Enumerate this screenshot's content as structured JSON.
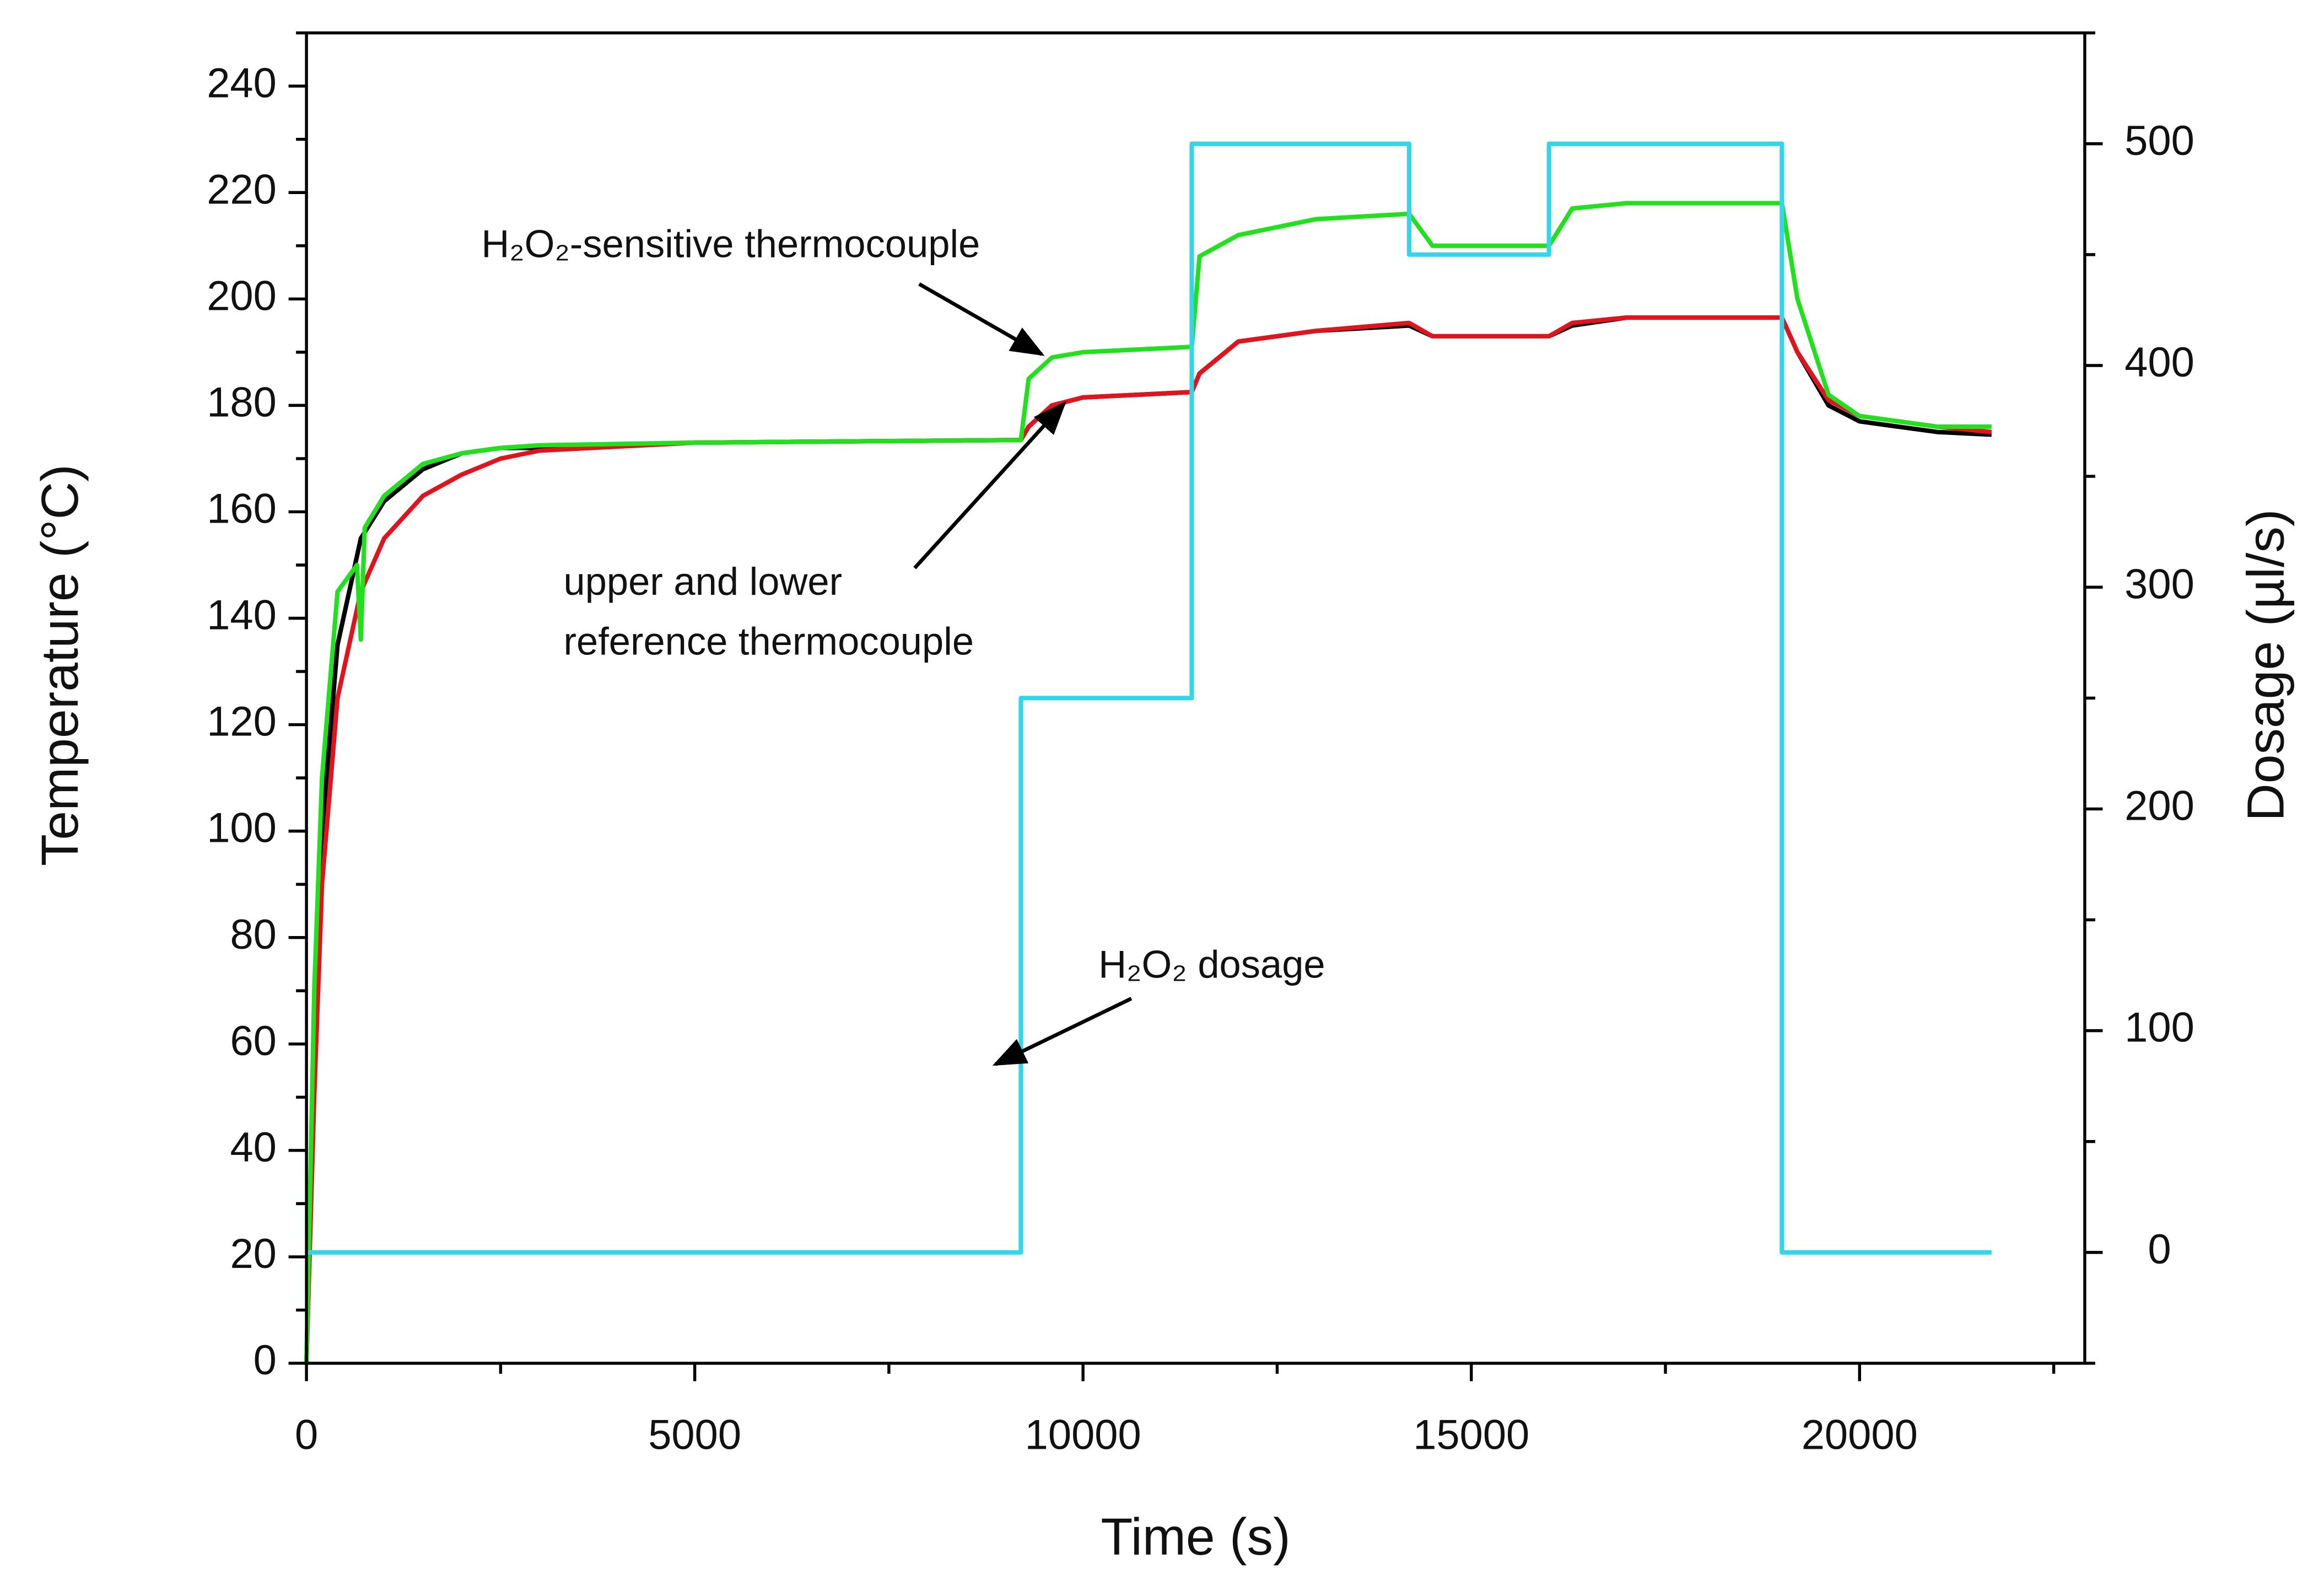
{
  "chart_data": {
    "type": "line",
    "xlabel": "Time (s)",
    "ylabel": "Temperature (°C)",
    "y2label": "Dosage (µl/s)",
    "xlim": [
      0,
      22900
    ],
    "ylim": [
      0,
      250
    ],
    "y2lim": [
      -50,
      550
    ],
    "xticks": [
      0,
      5000,
      10000,
      15000,
      20000
    ],
    "xticks_minor": [
      2500,
      7500,
      12500,
      17500,
      22500
    ],
    "yticks": [
      0,
      20,
      40,
      60,
      80,
      100,
      120,
      140,
      160,
      180,
      200,
      220,
      240
    ],
    "yticks_minor": [
      10,
      30,
      50,
      70,
      90,
      110,
      130,
      150,
      170,
      190,
      210,
      230,
      250
    ],
    "y2ticks": [
      0,
      100,
      200,
      300,
      400,
      500
    ],
    "y2ticks_minor": [
      -50,
      50,
      150,
      250,
      350,
      450,
      550
    ],
    "series": [
      {
        "color": "#000000",
        "x": [
          0,
          100,
          200,
          400,
          700,
          1000,
          1500,
          2000,
          2500,
          3000,
          5000,
          9200,
          9300,
          9600,
          10000,
          11400,
          11500,
          12000,
          13000,
          14200,
          14500,
          16000,
          16300,
          17000,
          19000,
          19200,
          19600,
          20000,
          21000,
          21700
        ],
        "values": [
          0,
          60,
          100,
          135,
          155,
          162,
          168,
          171,
          172,
          172,
          173,
          173.5,
          176,
          180,
          181.5,
          182.5,
          186,
          192,
          194,
          195,
          193,
          193,
          195,
          196.5,
          196.5,
          190,
          180,
          177,
          175,
          174.5
        ]
      },
      {
        "color": "#e0141e",
        "x": [
          0,
          100,
          200,
          400,
          700,
          1000,
          1500,
          2000,
          2500,
          3000,
          5000,
          9200,
          9300,
          9600,
          10000,
          11400,
          11500,
          12000,
          13000,
          14200,
          14500,
          16000,
          16300,
          17000,
          19000,
          19200,
          19600,
          20000,
          21000,
          21700
        ],
        "values": [
          0,
          50,
          90,
          125,
          145,
          155,
          163,
          167,
          170,
          171.5,
          173,
          173.5,
          176,
          180,
          181.5,
          182.5,
          186,
          192,
          194,
          195.5,
          193,
          193,
          195.5,
          196.5,
          196.5,
          190,
          181,
          178,
          176,
          175
        ]
      },
      {
        "color": "#22e01e",
        "x": [
          0,
          100,
          200,
          400,
          650,
          700,
          750,
          1000,
          1500,
          2000,
          2500,
          3000,
          5000,
          9200,
          9300,
          9600,
          10000,
          11400,
          11500,
          12000,
          13000,
          14200,
          14500,
          16000,
          16300,
          17000,
          19000,
          19200,
          19600,
          20000,
          21000,
          21700
        ],
        "values": [
          0,
          70,
          110,
          145,
          150,
          136,
          157,
          163,
          169,
          171,
          172,
          172.5,
          173,
          173.5,
          185,
          189,
          190,
          191,
          208,
          212,
          215,
          216,
          210,
          210,
          217,
          218,
          218,
          200,
          182,
          178,
          176,
          176
        ]
      },
      {
        "color": "#33d6e8",
        "axis": "y2",
        "x": [
          0,
          9200,
          9200,
          11400,
          11400,
          14200,
          14200,
          16000,
          16000,
          19000,
          19000,
          21700
        ],
        "values": [
          0,
          0,
          250,
          250,
          500,
          500,
          450,
          450,
          500,
          500,
          0,
          0
        ]
      }
    ],
    "annotations": [
      {
        "text": "H₂O₂-sensitive thermocouple"
      },
      {
        "lines": [
          "upper and lower",
          "reference thermocouple"
        ]
      },
      {
        "text": "H₂O₂ dosage"
      }
    ]
  }
}
